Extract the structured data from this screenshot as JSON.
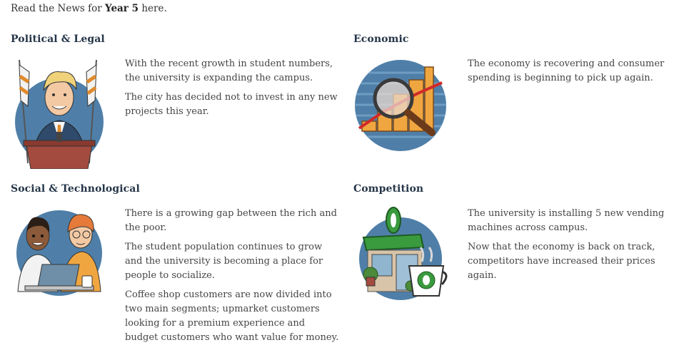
{
  "intro": {
    "prefix": "Read the News for",
    "year": "Year 5",
    "suffix": "here."
  },
  "sections": [
    {
      "title": "Political & Legal",
      "image": "politician-at-podium-illustration",
      "paragraphs": [
        "With the recent growth in student numbers, the university is expanding the campus.",
        "The city has decided not to invest in any new projects this year."
      ]
    },
    {
      "title": "Economic",
      "image": "magnifier-over-bar-chart-illustration",
      "paragraphs": [
        "The economy is recovering and consumer spending is beginning to pick up again."
      ]
    },
    {
      "title": "Social & Technological",
      "image": "two-students-with-laptop-illustration",
      "paragraphs": [
        "There is a growing gap between the rich and the poor.",
        "The student population continues to grow and the university is becoming a place for people to socialize.",
        "Coffee shop customers are now divided into two main segments; upmarket customers looking for a premium experience and budget customers who want value for money."
      ]
    },
    {
      "title": "Competition",
      "image": "coffee-shop-storefront-illustration",
      "paragraphs": [
        "The university is installing 5 new vending machines across campus.",
        "Now that the economy is back on track, competitors have increased their prices again."
      ]
    }
  ],
  "colors": {
    "title": "#253548",
    "body_text": "#444444",
    "accent_green": "#3a9a3e",
    "circle_blue": "#4f7fa8"
  }
}
